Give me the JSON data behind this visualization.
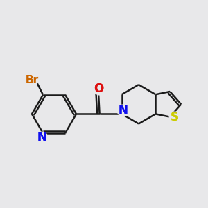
{
  "background_color": "#e8e8ea",
  "bond_color": "#1a1a1a",
  "atom_colors": {
    "N": "#1010ee",
    "O": "#dd1010",
    "Br": "#cc6600",
    "S": "#cccc00",
    "C": "#1a1a1a"
  },
  "lw": 1.8,
  "fs": 11
}
